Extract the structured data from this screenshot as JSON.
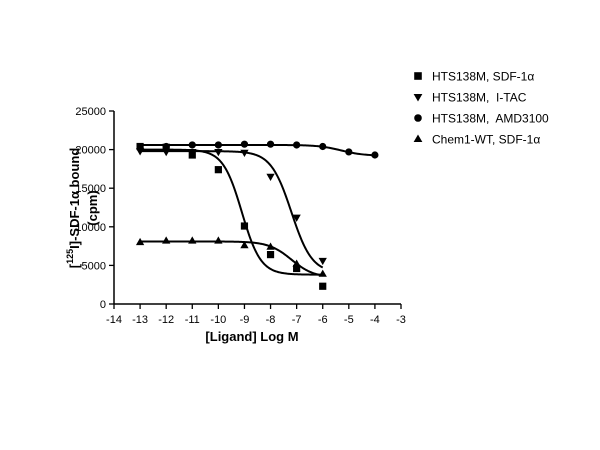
{
  "chart_data": {
    "type": "scatter",
    "title": "",
    "xlabel": "[Ligand] Log M",
    "ylabel_line1_prefix": "[",
    "ylabel_line1_sup": "125",
    "ylabel_line1_suffix": "I]-SDF-1α bound",
    "ylabel_line2": "(cpm)",
    "xlim": [
      -14,
      -3
    ],
    "ylim": [
      0,
      25000
    ],
    "x_ticks": [
      -14,
      -13,
      -12,
      -11,
      -10,
      -9,
      -8,
      -7,
      -6,
      -5,
      -4,
      -3
    ],
    "y_ticks": [
      0,
      5000,
      10000,
      15000,
      20000,
      25000
    ],
    "legend_position": "top-right",
    "series": [
      {
        "name": "HTS138M, SDF-1α",
        "marker": "square",
        "x": [
          -13,
          -12,
          -11,
          -10,
          -9,
          -8,
          -7,
          -6
        ],
        "y": [
          20400,
          20300,
          19300,
          17400,
          10100,
          6400,
          4600,
          2300
        ],
        "fit": {
          "top": 20000,
          "bottom": 3800,
          "logec50": -9.1,
          "hill": 1.2
        }
      },
      {
        "name": "HTS138M,  I-TAC",
        "marker": "triangle-down",
        "x": [
          -13,
          -12,
          -11,
          -10,
          -9,
          -8,
          -7,
          -6
        ],
        "y": [
          19800,
          19700,
          19700,
          19700,
          19600,
          16500,
          11200,
          5600
        ],
        "fit": {
          "top": 19800,
          "bottom": 4000,
          "logec50": -7.2,
          "hill": 1.1
        }
      },
      {
        "name": "HTS138M,  AMD3100",
        "marker": "circle",
        "x": [
          -13,
          -12,
          -11,
          -10,
          -9,
          -8,
          -7,
          -6,
          -5,
          -4
        ],
        "y": [
          20200,
          20400,
          20600,
          20600,
          20700,
          20700,
          20600,
          20400,
          19700,
          19300
        ],
        "fit": {
          "top": 20600,
          "bottom": 19200,
          "logec50": -5.3,
          "hill": 1.0
        }
      },
      {
        "name": "Chem1-WT, SDF-1α",
        "marker": "triangle-up",
        "x": [
          -13,
          -12,
          -11,
          -10,
          -9,
          -8,
          -7,
          -6
        ],
        "y": [
          8000,
          8200,
          8200,
          8200,
          7600,
          7400,
          5200,
          3900
        ],
        "fit": {
          "top": 8100,
          "bottom": 3400,
          "logec50": -7.2,
          "hill": 1.0
        }
      }
    ]
  }
}
